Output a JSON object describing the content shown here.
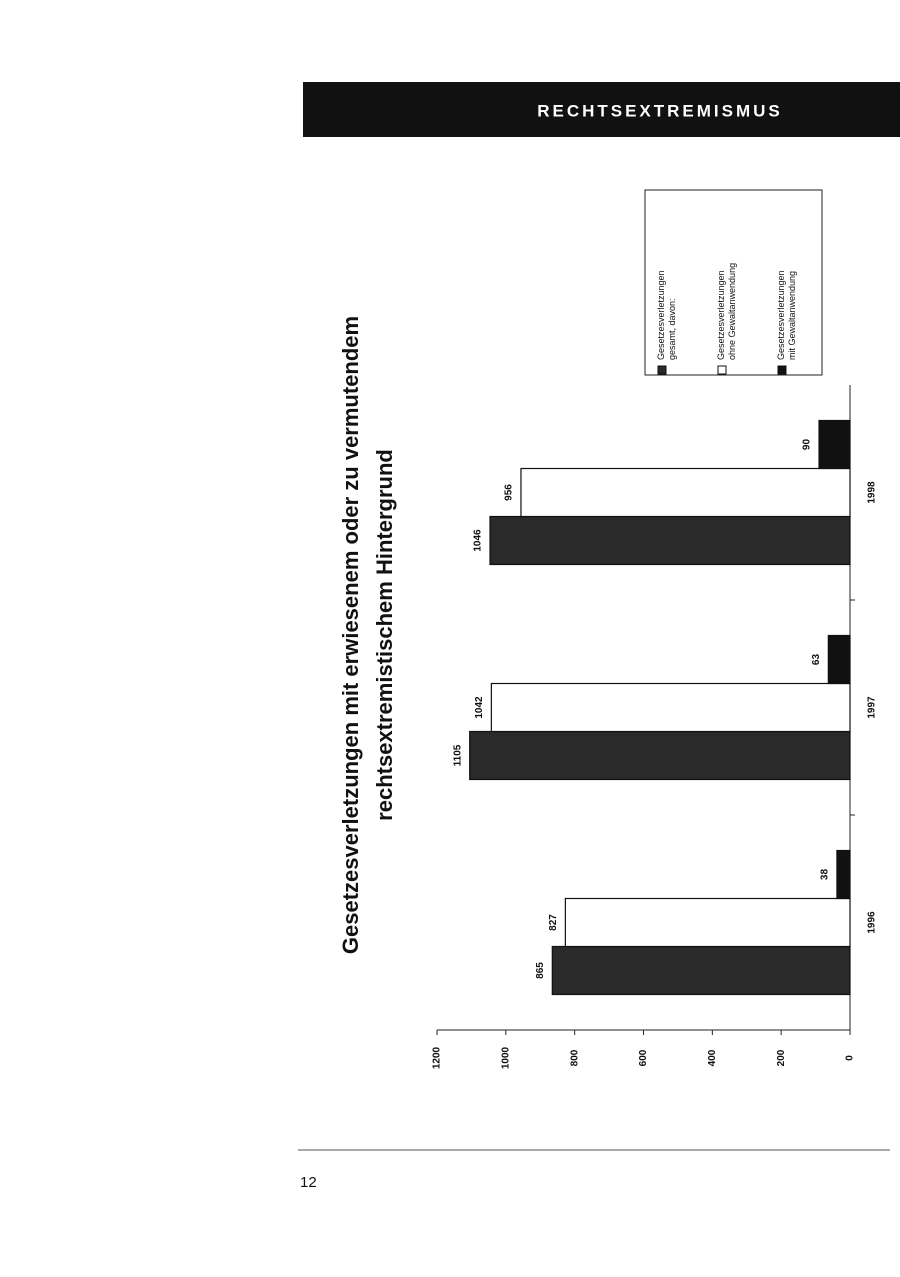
{
  "header": {
    "title": "RECHTSEXTREMISMUS"
  },
  "page_number": "12",
  "chart_data": {
    "type": "bar",
    "title": [
      "Gesetzesverletzungen mit erwiesenem oder zu vermutendem",
      "rechtsextremistischem Hintergrund"
    ],
    "categories": [
      "1996",
      "1997",
      "1998"
    ],
    "series": [
      {
        "name": "Gesetzesverletzungen gesamt, davon:",
        "color": "#2a2a2a",
        "values": [
          865,
          1105,
          1046
        ]
      },
      {
        "name": "Gesetzesverletzungen ohne Gewaltanwendung",
        "color": "#ffffff",
        "values": [
          827,
          1042,
          956
        ]
      },
      {
        "name": "Gesetzesverletzungen mit Gewaltanwendung",
        "color": "#111111",
        "values": [
          38,
          63,
          90
        ]
      }
    ],
    "ylim": [
      0,
      1200
    ],
    "yticks": [
      0,
      200,
      400,
      600,
      800,
      1000,
      1200
    ],
    "grid": false
  }
}
